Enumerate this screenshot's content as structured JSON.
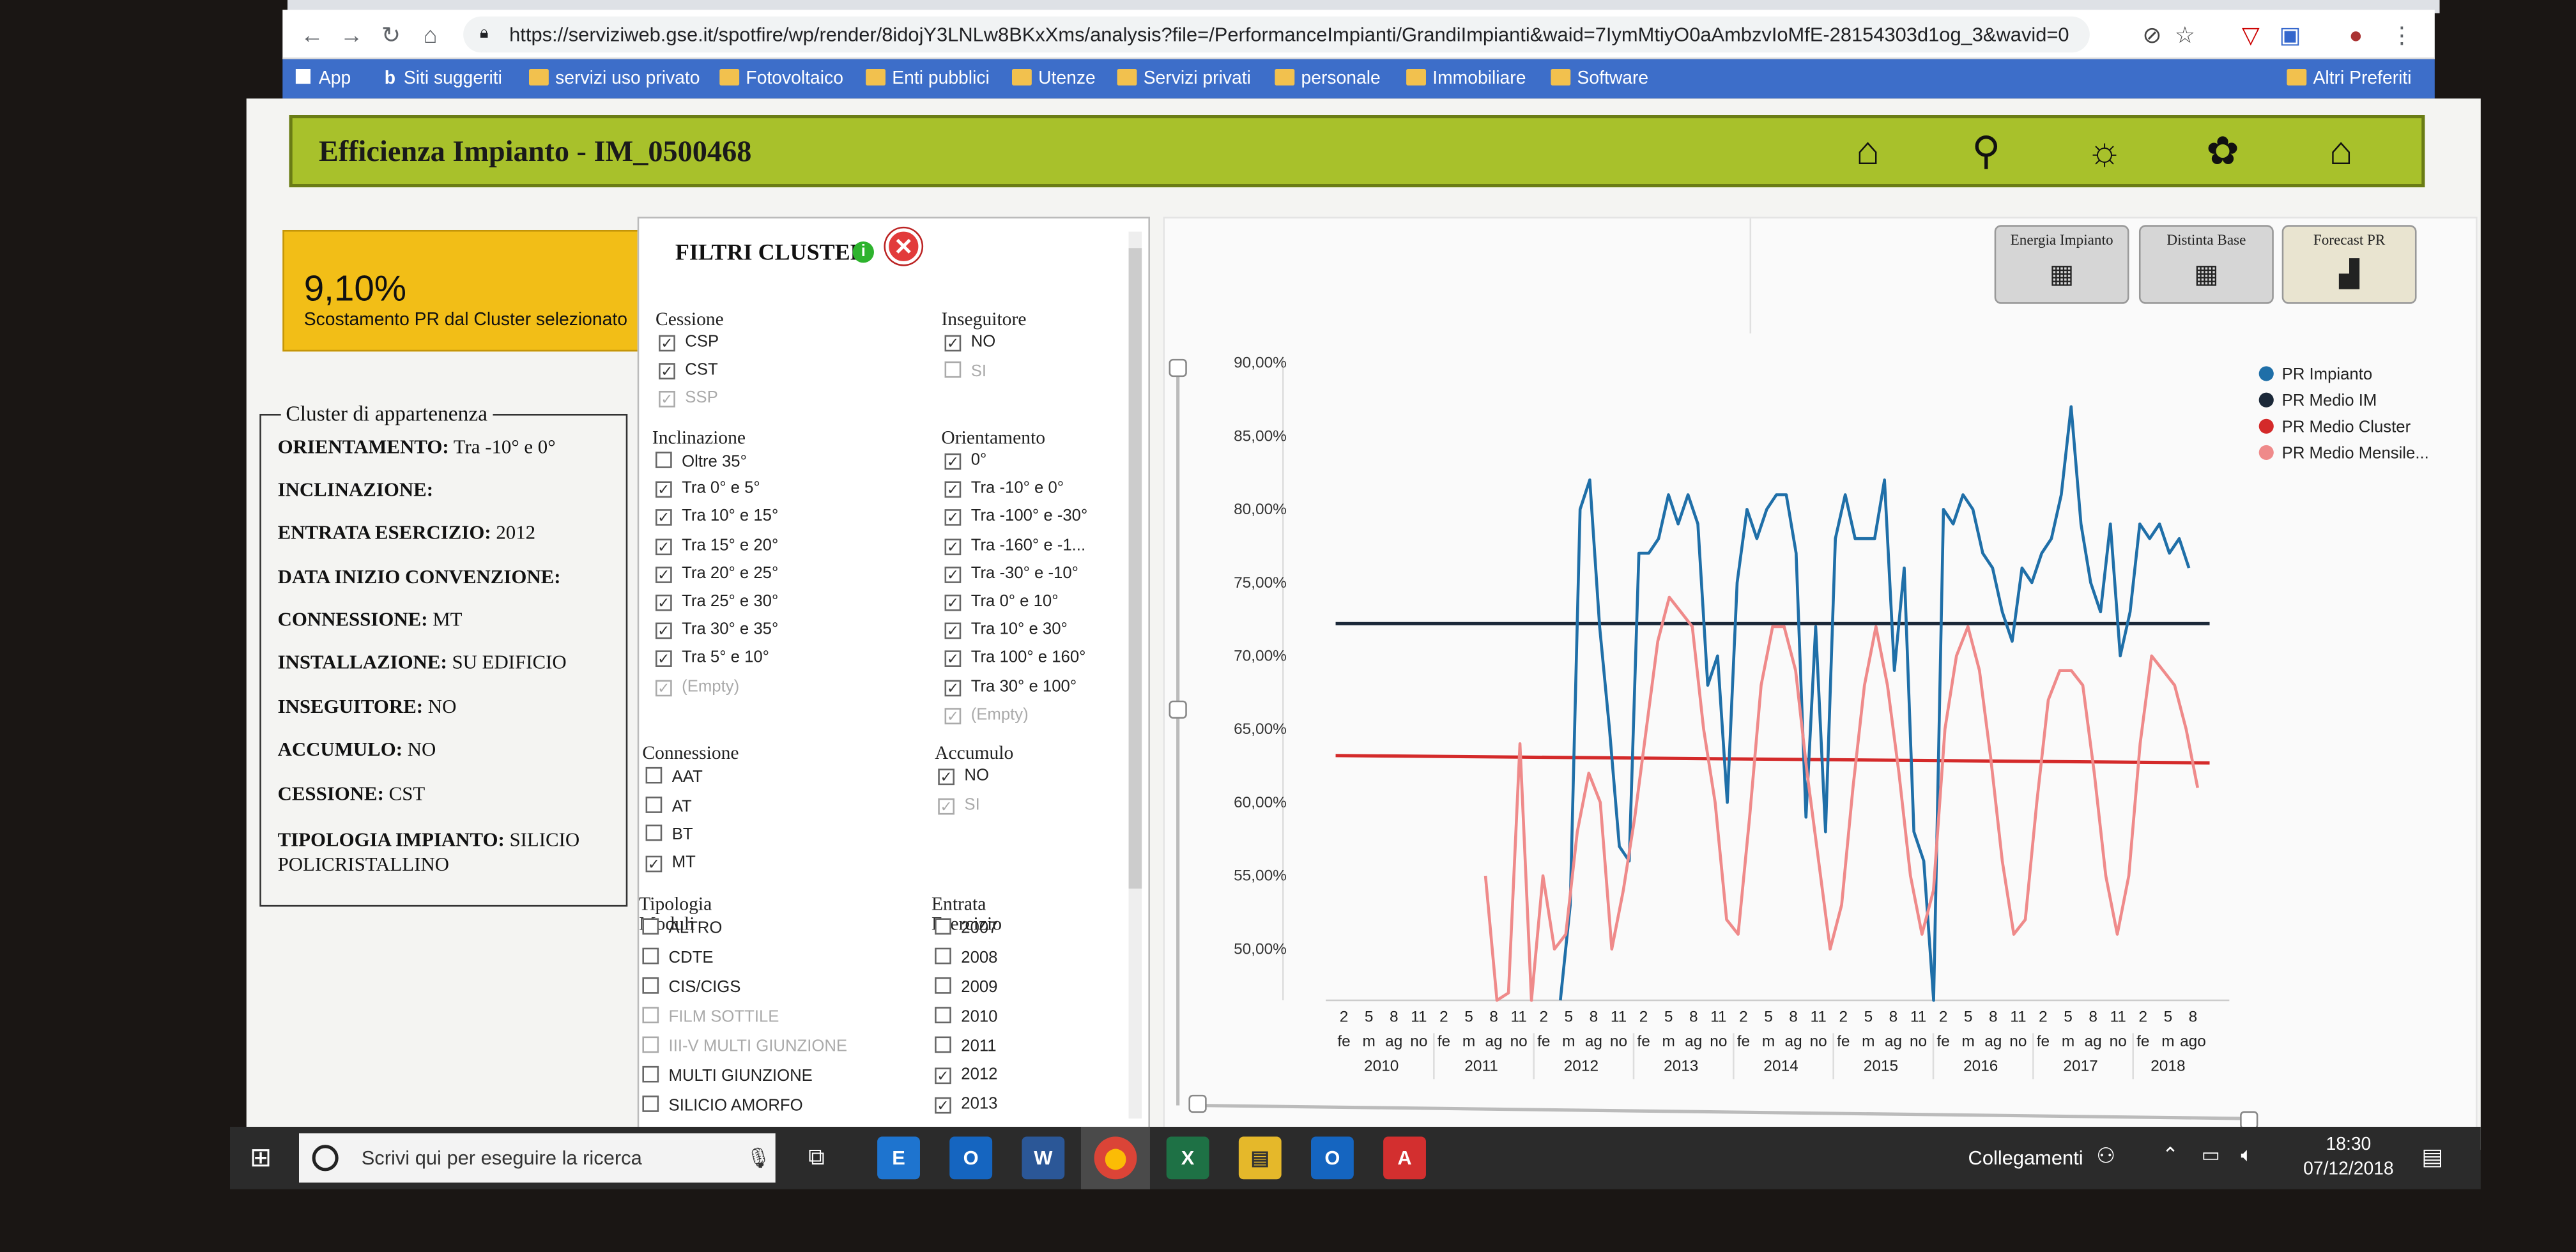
{
  "browser": {
    "url": "https://serviziweb.gse.it/spotfire/wp/render/8idojY3LNLw8BKxXms/analysis?file=/PerformanceImpianti/GrandiImpianti&waid=7IymMtiyO0aAmbzvIoMfE-28154303d1og_3&wavid=0",
    "bookmarks": [
      "App",
      "Siti suggeriti",
      "servizi uso privato",
      "Fotovoltaico",
      "Enti pubblici",
      "Utenze",
      "Servizi privati",
      "personale",
      "Immobiliare",
      "Software"
    ],
    "other_bookmarks": "Altri Preferiti"
  },
  "app": {
    "title": "Efficienza Impianto - IM_0500468",
    "nav_icons": [
      "home-icon",
      "italy-map-icon",
      "solar-panel-sun-icon",
      "lightbulb-hand-icon",
      "hand-building-icon"
    ]
  },
  "kpi": {
    "value": "9,10%",
    "label": "Scostamento PR dal Cluster selezionato"
  },
  "cluster": {
    "title": "Cluster di appartenenza",
    "rows": [
      {
        "label": "ORIENTAMENTO:",
        "value": " Tra -10° e 0°"
      },
      {
        "label": "INCLINAZIONE:",
        "value": ""
      },
      {
        "label": "ENTRATA ESERCIZIO:",
        "value": " 2012"
      },
      {
        "label": "DATA INIZIO CONVENZIONE:",
        "value": ""
      },
      {
        "label": "CONNESSIONE:",
        "value": " MT"
      },
      {
        "label": "INSTALLAZIONE:",
        "value": " SU EDIFICIO"
      },
      {
        "label": "INSEGUITORE:",
        "value": " NO"
      },
      {
        "label": "ACCUMULO:",
        "value": " NO"
      },
      {
        "label": "CESSIONE:",
        "value": " CST"
      },
      {
        "label": "TIPOLOGIA IMPIANTO:",
        "value": " SILICIO POLICRISTALLINO"
      }
    ]
  },
  "filters": {
    "title": "FILTRI CLUSTER",
    "groups": {
      "cessione": {
        "title": "Cessione",
        "items": [
          {
            "label": "CSP",
            "checked": true
          },
          {
            "label": "CST",
            "checked": true
          },
          {
            "label": "SSP",
            "checked": true,
            "disabled": true
          }
        ]
      },
      "inseguitore": {
        "title": "Inseguitore",
        "items": [
          {
            "label": "NO",
            "checked": true
          },
          {
            "label": "SI",
            "checked": false,
            "disabled": true
          }
        ]
      },
      "inclinazione": {
        "title": "Inclinazione",
        "items": [
          {
            "label": "Oltre 35°",
            "checked": false
          },
          {
            "label": "Tra 0° e 5°",
            "checked": true
          },
          {
            "label": "Tra 10° e 15°",
            "checked": true
          },
          {
            "label": "Tra 15° e 20°",
            "checked": true
          },
          {
            "label": "Tra 20° e 25°",
            "checked": true
          },
          {
            "label": "Tra 25° e 30°",
            "checked": true
          },
          {
            "label": "Tra 30° e 35°",
            "checked": true
          },
          {
            "label": "Tra 5° e 10°",
            "checked": true
          },
          {
            "label": "(Empty)",
            "checked": true,
            "disabled": true
          }
        ]
      },
      "orientamento": {
        "title": "Orientamento",
        "items": [
          {
            "label": "0°",
            "checked": true
          },
          {
            "label": "Tra -10° e 0°",
            "checked": true
          },
          {
            "label": "Tra -100° e -30°",
            "checked": true
          },
          {
            "label": "Tra -160° e -1...",
            "checked": true
          },
          {
            "label": "Tra -30° e -10°",
            "checked": true
          },
          {
            "label": "Tra 0° e 10°",
            "checked": true
          },
          {
            "label": "Tra 10° e 30°",
            "checked": true
          },
          {
            "label": "Tra 100° e 160°",
            "checked": true
          },
          {
            "label": "Tra 30° e 100°",
            "checked": true
          },
          {
            "label": "(Empty)",
            "checked": true,
            "disabled": true
          }
        ]
      },
      "connessione": {
        "title": "Connessione",
        "items": [
          {
            "label": "AAT",
            "checked": false
          },
          {
            "label": "AT",
            "checked": false
          },
          {
            "label": "BT",
            "checked": false
          },
          {
            "label": "MT",
            "checked": true
          }
        ]
      },
      "accumulo": {
        "title": "Accumulo",
        "items": [
          {
            "label": "NO",
            "checked": true
          },
          {
            "label": "SI",
            "checked": true,
            "disabled": true
          }
        ]
      },
      "tipologia": {
        "title": "Tipologia Moduli",
        "items": [
          {
            "label": "ALTRO",
            "checked": false
          },
          {
            "label": "CDTE",
            "checked": false
          },
          {
            "label": "CIS/CIGS",
            "checked": false
          },
          {
            "label": "FILM SOTTILE",
            "checked": false,
            "disabled": true
          },
          {
            "label": "III-V MULTI GIUNZIONE",
            "checked": false,
            "disabled": true
          },
          {
            "label": "MULTI GIUNZIONE",
            "checked": false
          },
          {
            "label": "SILICIO AMORFO",
            "checked": false
          }
        ]
      },
      "entrata": {
        "title": "Entrata Esercizio",
        "items": [
          {
            "label": "2007",
            "checked": false
          },
          {
            "label": "2008",
            "checked": false
          },
          {
            "label": "2009",
            "checked": false
          },
          {
            "label": "2010",
            "checked": false
          },
          {
            "label": "2011",
            "checked": false
          },
          {
            "label": "2012",
            "checked": true
          },
          {
            "label": "2013",
            "checked": true
          }
        ]
      }
    }
  },
  "chart_buttons": [
    {
      "label": "Energia Impianto",
      "icon": "solar-panel-icon"
    },
    {
      "label": "Distinta Base",
      "icon": "solar-panel-icon"
    },
    {
      "label": "Forecast PR",
      "icon": "hand-chart-icon"
    }
  ],
  "chart_data": {
    "type": "line",
    "ylim": [
      46.5,
      92
    ],
    "yticks": [
      "50,00%",
      "55,00%",
      "60,00%",
      "65,00%",
      "70,00%",
      "75,00%",
      "80,00%",
      "85,00%",
      "90,00%"
    ],
    "ytick_values": [
      50,
      55,
      60,
      65,
      70,
      75,
      80,
      85,
      90
    ],
    "x_month_ticks": [
      "2",
      "5",
      "8",
      "11"
    ],
    "x_month_names": [
      "fe",
      "m",
      "ag",
      "no"
    ],
    "last_year_month_ticks": [
      "2",
      "5",
      "8"
    ],
    "last_year_month_names": [
      "fe",
      "m",
      "ago"
    ],
    "years": [
      "2010",
      "2011",
      "2012",
      "2013",
      "2014",
      "2015",
      "2016",
      "2017",
      "2018"
    ],
    "legend": [
      {
        "name": "PR Impianto",
        "color": "#1f6fa8"
      },
      {
        "name": "PR Medio IM",
        "color": "#1b2838"
      },
      {
        "name": "PR Medio Cluster",
        "color": "#d42a2a"
      },
      {
        "name": "PR Medio Mensile...",
        "color": "#ef8a8a"
      }
    ],
    "series": [
      {
        "name": "PR Medio IM",
        "constant": 72.2,
        "x_start": 0,
        "x_end": 105
      },
      {
        "name": "PR Medio Cluster",
        "constant": 63.2,
        "x_start": 0,
        "x_end": 105,
        "x_end_value": 62.7
      },
      {
        "name": "PR Impianto",
        "x_start": 27,
        "values": [
          46,
          53,
          80,
          82,
          72,
          65,
          57,
          56,
          77,
          77,
          78,
          81,
          79,
          81,
          79,
          68,
          70,
          60,
          75,
          80,
          78,
          80,
          81,
          81,
          77,
          59,
          72,
          58,
          78,
          81,
          78,
          78,
          78,
          82,
          69,
          76,
          58,
          56,
          46,
          80,
          79,
          81,
          80,
          77,
          76,
          73,
          71,
          76,
          75,
          77,
          78,
          81,
          87,
          79,
          75,
          73,
          79,
          70,
          73,
          79,
          78,
          79,
          77,
          78,
          76
        ]
      },
      {
        "name": "PR Medio Mensile...",
        "x_start": 18,
        "values": [
          55,
          46,
          47,
          64,
          46,
          55,
          50,
          51,
          58,
          62,
          60,
          50,
          54,
          59,
          65,
          71,
          74,
          73,
          72,
          65,
          60,
          52,
          51,
          59,
          68,
          72,
          72,
          69,
          62,
          56,
          50,
          53,
          61,
          68,
          72,
          68,
          62,
          55,
          51,
          54,
          65,
          70,
          72,
          69,
          63,
          56,
          51,
          52,
          60,
          67,
          69,
          69,
          68,
          62,
          55,
          51,
          55,
          64,
          70,
          69,
          68,
          65,
          61
        ]
      }
    ]
  },
  "taskbar": {
    "search_placeholder": "Scrivi qui per eseguire la ricerca",
    "apps": [
      "E",
      "O",
      "W",
      "⬤",
      "X",
      "▤",
      "O",
      "A"
    ],
    "tray_label": "Collegamenti",
    "time": "18:30",
    "date": "07/12/2018"
  }
}
